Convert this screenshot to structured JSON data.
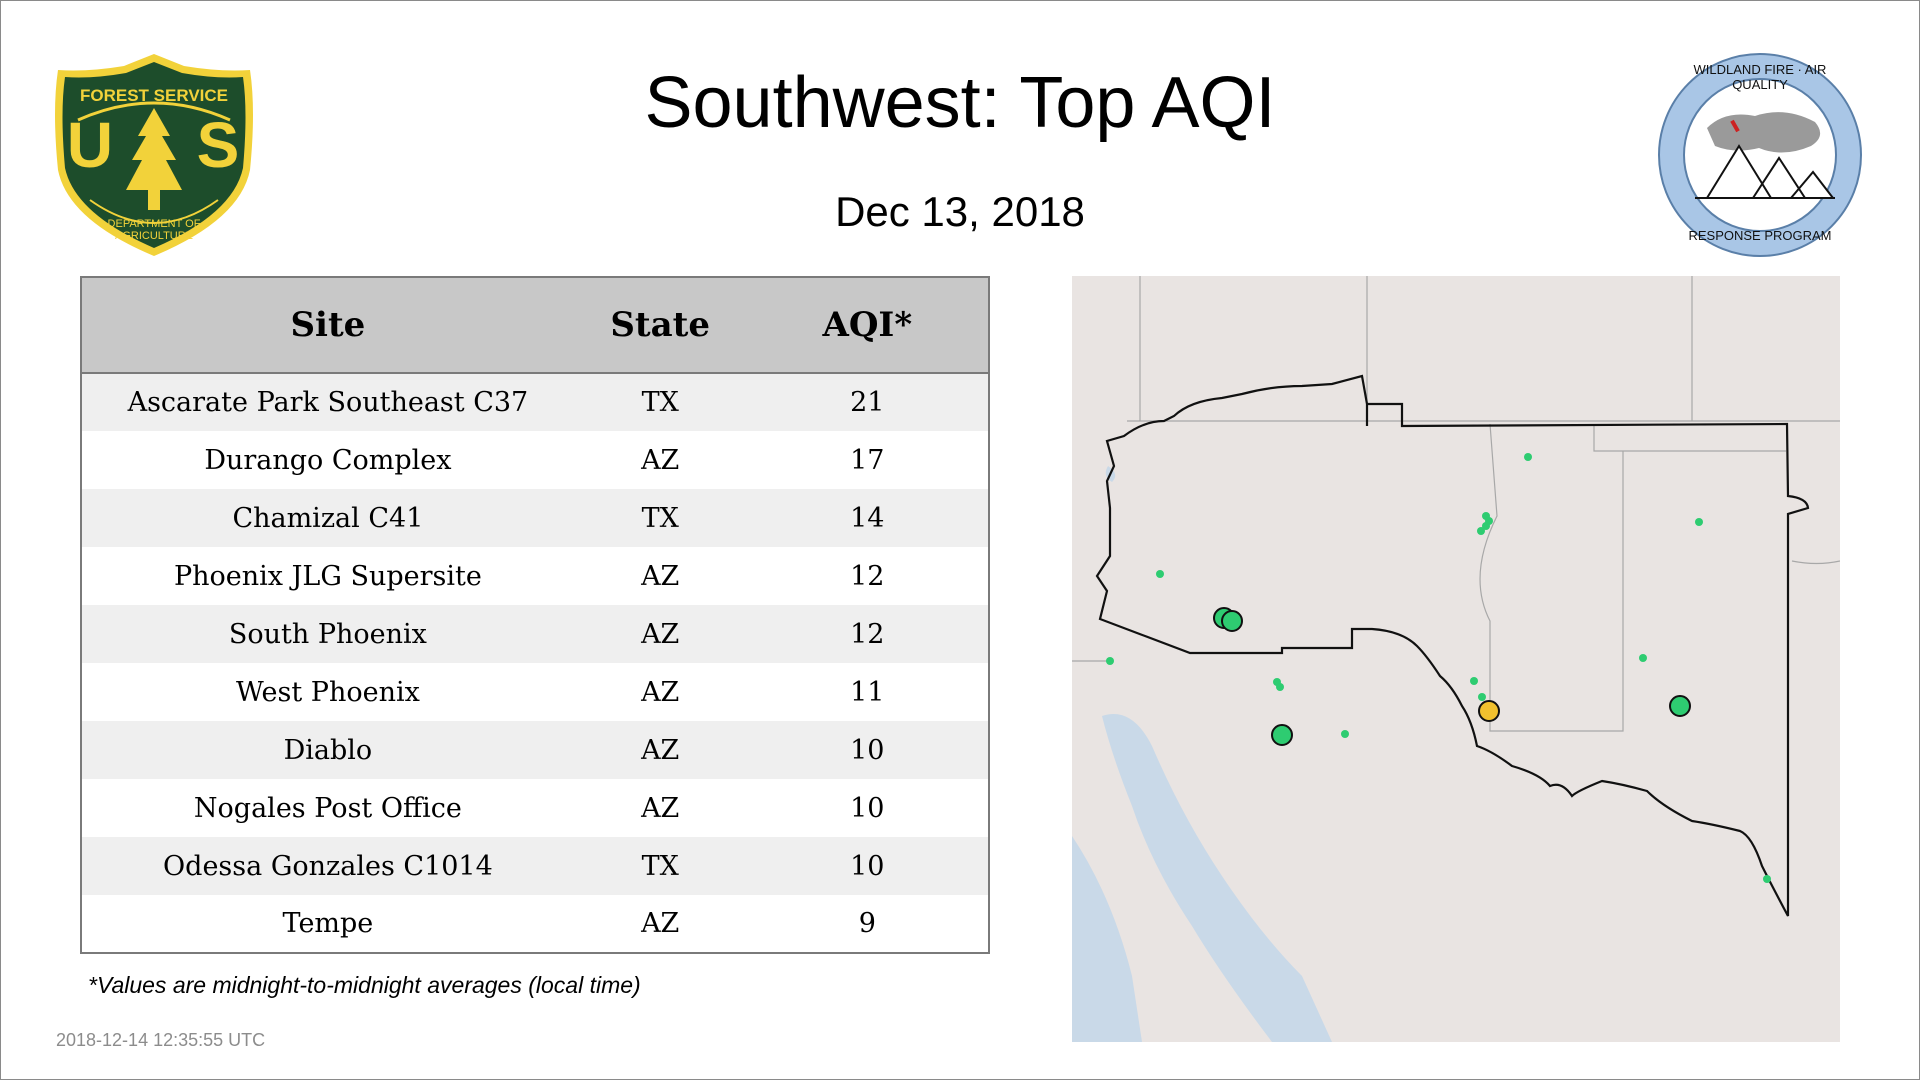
{
  "header": {
    "title": "Southwest: Top AQI",
    "date": "Dec 13, 2018"
  },
  "logos": {
    "usfs": {
      "top_text": "FOREST SERVICE",
      "bottom_text": "DEPARTMENT OF AGRICULTURE",
      "letters_left": "U",
      "letters_right": "S",
      "shield_color": "#1d4d2b",
      "gold_color": "#f2d23a"
    },
    "wfaq": {
      "top_text": "WILDLAND FIRE · AIR QUALITY",
      "bottom_text": "RESPONSE PROGRAM",
      "ring_color": "#a9c6e6"
    }
  },
  "table": {
    "columns": [
      "Site",
      "State",
      "AQI*"
    ],
    "rows": [
      {
        "site": "Ascarate Park Southeast C37",
        "state": "TX",
        "aqi": "21"
      },
      {
        "site": "Durango Complex",
        "state": "AZ",
        "aqi": "17"
      },
      {
        "site": "Chamizal C41",
        "state": "TX",
        "aqi": "14"
      },
      {
        "site": "Phoenix JLG Supersite",
        "state": "AZ",
        "aqi": "12"
      },
      {
        "site": "South Phoenix",
        "state": "AZ",
        "aqi": "12"
      },
      {
        "site": "West Phoenix",
        "state": "AZ",
        "aqi": "11"
      },
      {
        "site": "Diablo",
        "state": "AZ",
        "aqi": "10"
      },
      {
        "site": "Nogales Post Office",
        "state": "AZ",
        "aqi": "10"
      },
      {
        "site": "Odessa Gonzales C1014",
        "state": "TX",
        "aqi": "10"
      },
      {
        "site": "Tempe",
        "state": "AZ",
        "aqi": "9"
      }
    ]
  },
  "footnote": "*Values are midnight-to-midnight averages (local time)",
  "timestamp": "2018-12-14 12:35:55 UTC",
  "map": {
    "colors": {
      "land": "#e9e4e2",
      "water": "#c9d9e8",
      "border": "#111111",
      "state_line": "#a8a8a8",
      "aqi_good": "#2ecc71",
      "aqi_moderate": "#f2c12e"
    }
  }
}
